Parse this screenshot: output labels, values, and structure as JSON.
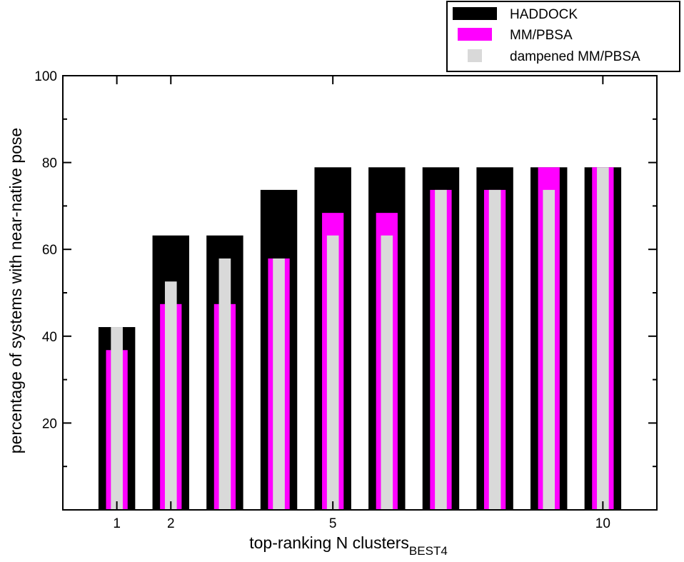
{
  "chart_data": {
    "type": "bar",
    "xlabel": "top-ranking N clusters",
    "xlabel_subscript": "BEST4",
    "ylabel": "percentage of systems with near-native pose",
    "ylim": [
      0,
      100
    ],
    "xlim": [
      0,
      11
    ],
    "yticks": [
      20,
      40,
      60,
      80,
      100
    ],
    "yminor": [
      10,
      30,
      50,
      70,
      90
    ],
    "xticks": [
      1,
      2,
      5,
      10
    ],
    "categories": [
      1,
      2,
      3,
      4,
      5,
      6,
      7,
      8,
      9,
      10
    ],
    "series": [
      {
        "name": "HADDOCK",
        "color": "#000000",
        "values": [
          42.1,
          63.2,
          63.2,
          73.7,
          78.9,
          78.9,
          78.9,
          78.9,
          78.9,
          78.9
        ]
      },
      {
        "name": "MM/PBSA",
        "color": "#ff00ff",
        "values": [
          36.8,
          47.4,
          47.4,
          57.9,
          68.4,
          68.4,
          73.7,
          73.7,
          78.9,
          78.9
        ]
      },
      {
        "name": "dampened MM/PBSA",
        "color": "#d9d9d9",
        "values": [
          42.1,
          52.6,
          57.9,
          57.9,
          63.2,
          63.2,
          73.7,
          73.7,
          73.7,
          78.9
        ]
      }
    ],
    "legend_position": "top-right",
    "grid": false
  }
}
